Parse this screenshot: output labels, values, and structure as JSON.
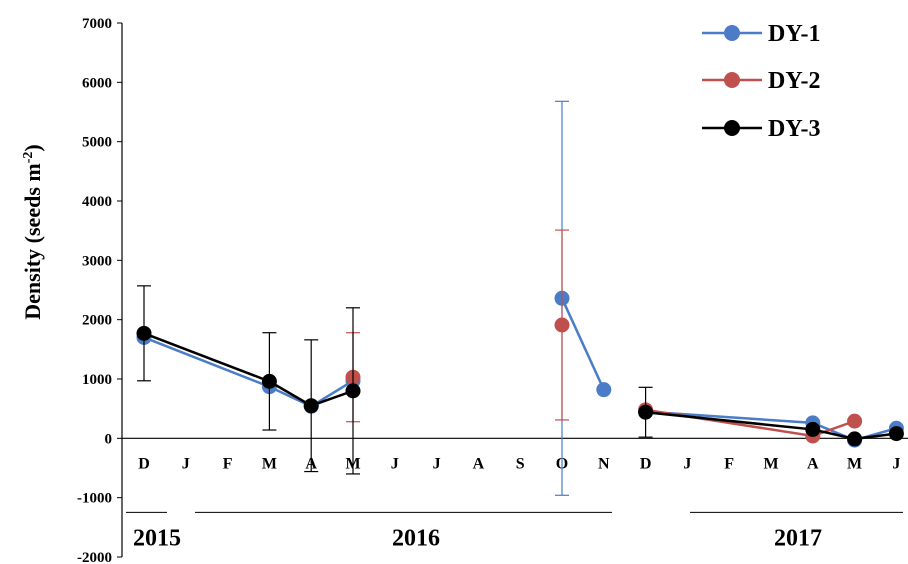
{
  "chart_data": {
    "type": "line",
    "ylabel_main": "Density (seeds m",
    "ylabel_sup": "-2",
    "ylabel_close": ")",
    "ylim": [
      -2000,
      7000
    ],
    "yticks": [
      -2000,
      -1000,
      0,
      1000,
      2000,
      3000,
      4000,
      5000,
      6000,
      7000
    ],
    "categories": [
      "D",
      "J",
      "F",
      "M",
      "A",
      "M",
      "J",
      "J",
      "A",
      "S",
      "O",
      "N",
      "D",
      "J",
      "F",
      "M",
      "A",
      "M",
      "J"
    ],
    "years": [
      "2015",
      "2016",
      "2017"
    ],
    "grid": false,
    "legend_position": "top-right",
    "series": [
      {
        "name": "DY-1",
        "color": "#4a7cc7",
        "segments": [
          [
            {
              "x": 0,
              "y": 1700
            },
            {
              "x": 3,
              "y": 870
            },
            {
              "x": 4,
              "y": 540
            },
            {
              "x": 5,
              "y": 970
            }
          ],
          [
            {
              "x": 10,
              "y": 2360,
              "err": 3320
            },
            {
              "x": 11,
              "y": 820
            }
          ],
          [
            {
              "x": 12,
              "y": 450
            },
            {
              "x": 16,
              "y": 260
            },
            {
              "x": 17,
              "y": -30
            },
            {
              "x": 18,
              "y": 170
            }
          ]
        ]
      },
      {
        "name": "DY-2",
        "color": "#c0504d",
        "segments": [
          [
            {
              "x": 5,
              "y": 1030,
              "err": 750
            }
          ],
          [
            {
              "x": 10,
              "y": 1910,
              "err": 1600
            }
          ],
          [
            {
              "x": 12,
              "y": 480
            },
            {
              "x": 16,
              "y": 40
            },
            {
              "x": 17,
              "y": 290
            }
          ]
        ]
      },
      {
        "name": "DY-3",
        "color": "#000000",
        "segments": [
          [
            {
              "x": 0,
              "y": 1770,
              "err": 800
            },
            {
              "x": 3,
              "y": 960,
              "err": 820
            },
            {
              "x": 4,
              "y": 550,
              "err": 1110
            },
            {
              "x": 5,
              "y": 800,
              "err": 1400
            }
          ],
          [
            {
              "x": 12,
              "y": 440,
              "err": 420
            },
            {
              "x": 16,
              "y": 150
            },
            {
              "x": 17,
              "y": -10
            },
            {
              "x": 18,
              "y": 80
            }
          ]
        ]
      }
    ]
  }
}
